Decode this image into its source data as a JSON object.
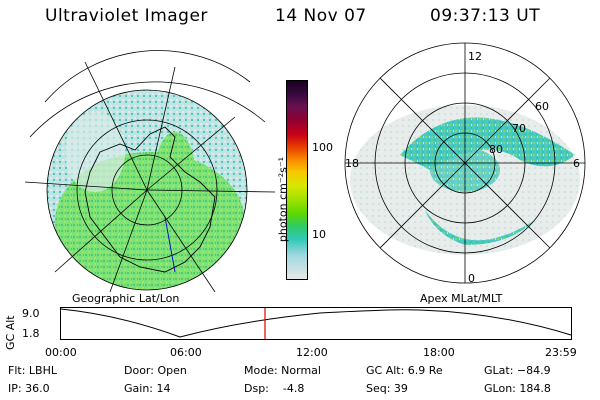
{
  "header": {
    "title": "Ultraviolet Imager",
    "date": "14 Nov 07",
    "time": "09:37:13 UT"
  },
  "geo_panel": {
    "label": "Geographic Lat/Lon"
  },
  "apex_panel": {
    "label": "Apex MLat/MLT",
    "mlt_labels": {
      "top": "12",
      "left": "18",
      "right": "6",
      "bottom": "0"
    },
    "lat_labels": [
      "60",
      "70",
      "80"
    ]
  },
  "colorbar": {
    "label": "photon cm⁻²s⁻¹",
    "ticks": [
      "100",
      "10"
    ],
    "colors": [
      "#1a0022",
      "#3a0a40",
      "#6a1050",
      "#900030",
      "#c80018",
      "#e83a00",
      "#f88c00",
      "#f8c800",
      "#d8e800",
      "#9ee000",
      "#5cd800",
      "#30cc60",
      "#30c8b8",
      "#a0d8e0",
      "#e8e8e8"
    ]
  },
  "altitude_plot": {
    "ylabel": "GC Alt",
    "yticks": [
      "9.0",
      "1.8"
    ],
    "xticks": [
      "00:00",
      "06:00",
      "12:00",
      "18:00",
      "23:59"
    ],
    "current_time_fraction": 0.4
  },
  "info": {
    "flt": "Flt: LBHL",
    "ip": "IP: 36.0",
    "door": "Door: Open",
    "gain": "Gain: 14",
    "mode": "Mode: Normal",
    "dsp": "Dsp:    -4.8",
    "gcalt": "GC Alt: 6.9 Re",
    "seq": "Seq: 39",
    "glat": "GLat: −84.9",
    "glon": "GLon: 184.8"
  }
}
